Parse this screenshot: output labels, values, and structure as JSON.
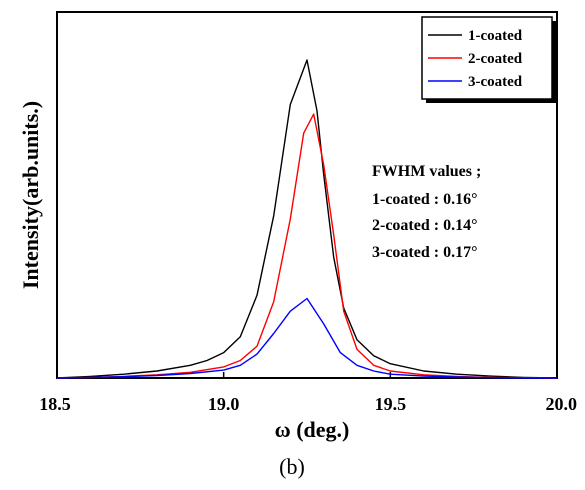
{
  "chart_data": {
    "type": "line",
    "xlabel": "ω (deg.)",
    "ylabel": "Intensity(arb.units.)",
    "xlim": [
      18.5,
      20.0
    ],
    "ylim": [
      0,
      1.0
    ],
    "x_ticks": [
      "18.5",
      "19.0",
      "19.5",
      "20.0"
    ],
    "grid": false,
    "legend": "top-right",
    "caption": "(b)",
    "annotation": {
      "title": "FWHM values ;",
      "lines": [
        "1-coated : 0.16°",
        "2-coated : 0.14°",
        "3-coated : 0.17°"
      ]
    },
    "series": [
      {
        "name": "1-coated",
        "color": "#000000",
        "x": [
          18.5,
          18.6,
          18.7,
          18.8,
          18.9,
          18.95,
          19.0,
          19.05,
          19.1,
          19.15,
          19.2,
          19.25,
          19.28,
          19.3,
          19.33,
          19.36,
          19.4,
          19.45,
          19.5,
          19.6,
          19.7,
          19.8,
          19.9,
          20.0
        ],
        "y": [
          0.0,
          0.005,
          0.012,
          0.022,
          0.04,
          0.055,
          0.08,
          0.13,
          0.26,
          0.51,
          0.86,
          1.0,
          0.84,
          0.64,
          0.38,
          0.22,
          0.12,
          0.07,
          0.045,
          0.022,
          0.012,
          0.006,
          0.002,
          0.0
        ]
      },
      {
        "name": "2-coated",
        "color": "#ff0000",
        "x": [
          18.5,
          18.6,
          18.7,
          18.8,
          18.9,
          19.0,
          19.05,
          19.1,
          19.15,
          19.2,
          19.24,
          19.27,
          19.3,
          19.33,
          19.36,
          19.4,
          19.45,
          19.5,
          19.6,
          19.7,
          19.8,
          19.9,
          20.0
        ],
        "y": [
          0.0,
          0.002,
          0.005,
          0.01,
          0.018,
          0.035,
          0.055,
          0.1,
          0.24,
          0.5,
          0.77,
          0.83,
          0.67,
          0.45,
          0.21,
          0.09,
          0.04,
          0.022,
          0.01,
          0.005,
          0.002,
          0.001,
          0.0
        ]
      },
      {
        "name": "3-coated",
        "color": "#0000ff",
        "x": [
          18.5,
          18.6,
          18.7,
          18.8,
          18.9,
          19.0,
          19.05,
          19.1,
          19.15,
          19.2,
          19.25,
          19.3,
          19.35,
          19.4,
          19.45,
          19.5,
          19.6,
          19.7,
          19.8,
          19.9,
          20.0
        ],
        "y": [
          0.0,
          0.002,
          0.004,
          0.008,
          0.014,
          0.025,
          0.04,
          0.075,
          0.14,
          0.21,
          0.25,
          0.17,
          0.08,
          0.04,
          0.022,
          0.012,
          0.006,
          0.003,
          0.001,
          0.0,
          0.0
        ]
      }
    ]
  }
}
